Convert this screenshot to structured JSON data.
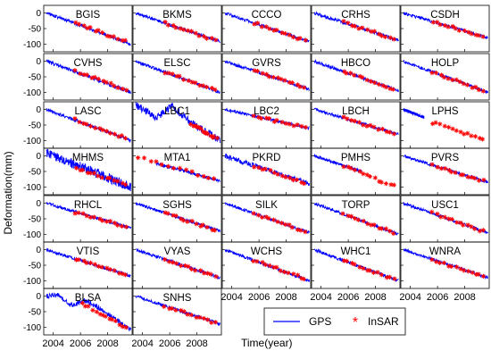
{
  "figure": {
    "ylabel": "Deformation(mm)",
    "xlabel": "Time(year)",
    "legend": {
      "placement": "bottom-right",
      "entries": [
        {
          "name": "GPS",
          "marker": "line",
          "color": "#0000ff"
        },
        {
          "name": "InSAR",
          "marker": "asterisk",
          "color": "#ff0000"
        }
      ]
    },
    "colors": {
      "gps": "#0000ff",
      "insar": "#ff0000",
      "axes": "#000000"
    }
  },
  "chart_data": {
    "type": "scatter",
    "layout": "small-multiples grid, 7 rows x 5 columns (32 panels)",
    "xlim": [
      2003.3,
      2009.8
    ],
    "ylim": [
      -125,
      25
    ],
    "x_ticks": [
      "2004",
      "2006",
      "2008"
    ],
    "y_ticks": [
      "0",
      "-50",
      "-100"
    ],
    "series_names": [
      "GPS",
      "InSAR"
    ],
    "grid": false,
    "stations": [
      {
        "name": "BGIS",
        "row": 0,
        "col": 0,
        "trend": [
          {
            "x": 2003.5,
            "y": 0
          },
          {
            "x": 2009.7,
            "y": -100
          }
        ],
        "insar": [
          {
            "x": 2005.5,
            "y": -30
          },
          {
            "x": 2009.5,
            "y": -95
          }
        ],
        "gps_noise": 5
      },
      {
        "name": "BKMS",
        "row": 0,
        "col": 1,
        "trend": [
          {
            "x": 2003.5,
            "y": 0
          },
          {
            "x": 2009.7,
            "y": -92
          }
        ],
        "insar": [
          {
            "x": 2005.5,
            "y": -30
          },
          {
            "x": 2009.5,
            "y": -90
          }
        ],
        "gps_noise": 5
      },
      {
        "name": "CCCO",
        "row": 0,
        "col": 2,
        "trend": [
          {
            "x": 2003.5,
            "y": 0
          },
          {
            "x": 2009.7,
            "y": -92
          }
        ],
        "insar": [
          {
            "x": 2005.5,
            "y": -30
          },
          {
            "x": 2009.5,
            "y": -90
          }
        ],
        "gps_noise": 5
      },
      {
        "name": "CRHS",
        "row": 0,
        "col": 3,
        "trend": [
          {
            "x": 2003.5,
            "y": 0
          },
          {
            "x": 2009.7,
            "y": -88
          }
        ],
        "insar": [
          {
            "x": 2005.5,
            "y": -28
          },
          {
            "x": 2009.5,
            "y": -85
          }
        ],
        "gps_noise": 5
      },
      {
        "name": "CSDH",
        "row": 0,
        "col": 4,
        "trend": [
          {
            "x": 2003.5,
            "y": 0
          },
          {
            "x": 2009.7,
            "y": -80
          }
        ],
        "insar": [
          {
            "x": 2005.5,
            "y": -25
          },
          {
            "x": 2009.5,
            "y": -78
          }
        ],
        "gps_noise": 5
      },
      {
        "name": "CVHS",
        "row": 1,
        "col": 0,
        "trend": [
          {
            "x": 2003.5,
            "y": 0
          },
          {
            "x": 2009.7,
            "y": -100
          }
        ],
        "insar": [
          {
            "x": 2005.5,
            "y": -30
          },
          {
            "x": 2009.5,
            "y": -95
          }
        ],
        "gps_noise": 6
      },
      {
        "name": "ELSC",
        "row": 1,
        "col": 1,
        "trend": [
          {
            "x": 2003.5,
            "y": 0
          },
          {
            "x": 2009.7,
            "y": -100
          }
        ],
        "insar": [
          {
            "x": 2005.5,
            "y": -32
          },
          {
            "x": 2009.5,
            "y": -95
          }
        ],
        "gps_noise": 5
      },
      {
        "name": "GVRS",
        "row": 1,
        "col": 2,
        "trend": [
          {
            "x": 2003.5,
            "y": 0
          },
          {
            "x": 2009.7,
            "y": -90
          }
        ],
        "insar": [
          {
            "x": 2005.5,
            "y": -28
          },
          {
            "x": 2009.5,
            "y": -88
          }
        ],
        "gps_noise": 5
      },
      {
        "name": "HBCO",
        "row": 1,
        "col": 3,
        "trend": [
          {
            "x": 2003.5,
            "y": 0
          },
          {
            "x": 2009.7,
            "y": -95
          }
        ],
        "insar": [
          {
            "x": 2005.5,
            "y": -30
          },
          {
            "x": 2009.5,
            "y": -92
          }
        ],
        "gps_noise": 5
      },
      {
        "name": "HOLP",
        "row": 1,
        "col": 4,
        "trend": [
          {
            "x": 2003.5,
            "y": 0
          },
          {
            "x": 2009.7,
            "y": -100
          }
        ],
        "insar": [
          {
            "x": 2005.5,
            "y": -32
          },
          {
            "x": 2009.5,
            "y": -98
          }
        ],
        "gps_noise": 5
      },
      {
        "name": "LASC",
        "row": 2,
        "col": 0,
        "trend": [
          {
            "x": 2003.5,
            "y": 0
          },
          {
            "x": 2009.7,
            "y": -100
          }
        ],
        "insar": [
          {
            "x": 2005.5,
            "y": -30
          },
          {
            "x": 2009.5,
            "y": -95
          }
        ],
        "gps_noise": 5
      },
      {
        "name": "LBC1",
        "row": 2,
        "col": 1,
        "trend": [
          {
            "x": 2003.5,
            "y": 15
          },
          {
            "x": 2005.0,
            "y": -25
          },
          {
            "x": 2006.2,
            "y": 10
          },
          {
            "x": 2007.5,
            "y": -40
          },
          {
            "x": 2009.7,
            "y": -100
          }
        ],
        "insar": [
          {
            "x": 2007.5,
            "y": -45
          },
          {
            "x": 2009.5,
            "y": -95
          }
        ],
        "gps_noise": 12
      },
      {
        "name": "LBC2",
        "row": 2,
        "col": 2,
        "trend": [
          {
            "x": 2003.5,
            "y": 0
          },
          {
            "x": 2009.7,
            "y": -60
          }
        ],
        "insar": [
          {
            "x": 2005.5,
            "y": -20
          },
          {
            "x": 2009.5,
            "y": -58
          }
        ],
        "gps_noise": 5
      },
      {
        "name": "LBCH",
        "row": 2,
        "col": 3,
        "trend": [
          {
            "x": 2003.5,
            "y": 0
          },
          {
            "x": 2009.7,
            "y": -80
          }
        ],
        "insar": [
          {
            "x": 2005.5,
            "y": -25
          },
          {
            "x": 2009.5,
            "y": -78
          }
        ],
        "gps_noise": 5
      },
      {
        "name": "LPHS",
        "row": 2,
        "col": 4,
        "trend": [
          {
            "x": 2003.5,
            "y": 0
          },
          {
            "x": 2005.0,
            "y": -25
          }
        ],
        "insar": [
          {
            "x": 2005.5,
            "y": -40
          },
          {
            "x": 2009.5,
            "y": -100
          }
        ],
        "gps_noise": 5
      },
      {
        "name": "MHMS",
        "row": 3,
        "col": 0,
        "trend": [
          {
            "x": 2003.5,
            "y": 10
          },
          {
            "x": 2009.7,
            "y": -100
          }
        ],
        "insar": [
          {
            "x": 2005.5,
            "y": -35
          },
          {
            "x": 2009.5,
            "y": -95
          }
        ],
        "gps_noise": 16
      },
      {
        "name": "MTA1",
        "row": 3,
        "col": 1,
        "trend": [
          {
            "x": 2005.0,
            "y": -25
          },
          {
            "x": 2009.7,
            "y": -80
          }
        ],
        "insar": [
          {
            "x": 2003.5,
            "y": 0
          },
          {
            "x": 2009.5,
            "y": -78
          }
        ],
        "gps_noise": 5
      },
      {
        "name": "PKRD",
        "row": 3,
        "col": 2,
        "trend": [
          {
            "x": 2003.5,
            "y": 0
          },
          {
            "x": 2009.7,
            "y": -90
          }
        ],
        "insar": [
          {
            "x": 2005.5,
            "y": -30
          },
          {
            "x": 2009.5,
            "y": -88
          }
        ],
        "gps_noise": 8
      },
      {
        "name": "PMHS",
        "row": 3,
        "col": 3,
        "trend": [
          {
            "x": 2003.5,
            "y": 0
          },
          {
            "x": 2007.0,
            "y": -50
          }
        ],
        "insar": [
          {
            "x": 2005.5,
            "y": -30
          },
          {
            "x": 2009.5,
            "y": -100
          }
        ],
        "gps_noise": 5
      },
      {
        "name": "PVRS",
        "row": 3,
        "col": 4,
        "trend": [
          {
            "x": 2003.5,
            "y": 0
          },
          {
            "x": 2009.7,
            "y": -85
          }
        ],
        "insar": [
          {
            "x": 2005.5,
            "y": -28
          },
          {
            "x": 2009.5,
            "y": -82
          }
        ],
        "gps_noise": 5
      },
      {
        "name": "RHCL",
        "row": 4,
        "col": 0,
        "trend": [
          {
            "x": 2003.5,
            "y": 0
          },
          {
            "x": 2009.7,
            "y": -80
          }
        ],
        "insar": [
          {
            "x": 2005.5,
            "y": -28
          },
          {
            "x": 2009.5,
            "y": -78
          }
        ],
        "gps_noise": 5
      },
      {
        "name": "SGHS",
        "row": 4,
        "col": 1,
        "trend": [
          {
            "x": 2003.5,
            "y": 0
          },
          {
            "x": 2009.7,
            "y": -90
          }
        ],
        "insar": [
          {
            "x": 2005.5,
            "y": -30
          },
          {
            "x": 2009.5,
            "y": -88
          }
        ],
        "gps_noise": 5
      },
      {
        "name": "SILK",
        "row": 4,
        "col": 2,
        "trend": [
          {
            "x": 2003.5,
            "y": 0
          },
          {
            "x": 2009.7,
            "y": -95
          }
        ],
        "insar": [
          {
            "x": 2005.5,
            "y": -30
          },
          {
            "x": 2009.5,
            "y": -92
          }
        ],
        "gps_noise": 5
      },
      {
        "name": "TORP",
        "row": 4,
        "col": 3,
        "trend": [
          {
            "x": 2003.5,
            "y": 0
          },
          {
            "x": 2009.7,
            "y": -100
          }
        ],
        "insar": [
          {
            "x": 2005.5,
            "y": -32
          },
          {
            "x": 2009.5,
            "y": -98
          }
        ],
        "gps_noise": 5
      },
      {
        "name": "USC1",
        "row": 4,
        "col": 4,
        "trend": [
          {
            "x": 2003.5,
            "y": 0
          },
          {
            "x": 2009.7,
            "y": -95
          }
        ],
        "insar": [
          {
            "x": 2005.5,
            "y": -30
          },
          {
            "x": 2009.5,
            "y": -92
          }
        ],
        "gps_noise": 5
      },
      {
        "name": "VTIS",
        "row": 5,
        "col": 0,
        "trend": [
          {
            "x": 2003.5,
            "y": 0
          },
          {
            "x": 2009.7,
            "y": -85
          }
        ],
        "insar": [
          {
            "x": 2005.5,
            "y": -28
          },
          {
            "x": 2009.5,
            "y": -82
          }
        ],
        "gps_noise": 5
      },
      {
        "name": "VYAS",
        "row": 5,
        "col": 1,
        "trend": [
          {
            "x": 2003.5,
            "y": 0
          },
          {
            "x": 2009.7,
            "y": -90
          }
        ],
        "insar": [
          {
            "x": 2005.5,
            "y": -30
          },
          {
            "x": 2009.5,
            "y": -88
          }
        ],
        "gps_noise": 5
      },
      {
        "name": "WCHS",
        "row": 5,
        "col": 2,
        "trend": [
          {
            "x": 2003.5,
            "y": 0
          },
          {
            "x": 2009.7,
            "y": -100
          }
        ],
        "insar": [
          {
            "x": 2005.5,
            "y": -32
          },
          {
            "x": 2009.5,
            "y": -95
          }
        ],
        "gps_noise": 5
      },
      {
        "name": "WHC1",
        "row": 5,
        "col": 3,
        "trend": [
          {
            "x": 2003.5,
            "y": 0
          },
          {
            "x": 2009.7,
            "y": -100
          }
        ],
        "insar": [
          {
            "x": 2005.5,
            "y": -32
          },
          {
            "x": 2009.5,
            "y": -98
          }
        ],
        "gps_noise": 5
      },
      {
        "name": "WNRA",
        "row": 5,
        "col": 4,
        "trend": [
          {
            "x": 2003.5,
            "y": 0
          },
          {
            "x": 2009.7,
            "y": -90
          }
        ],
        "insar": [
          {
            "x": 2005.5,
            "y": -30
          },
          {
            "x": 2009.5,
            "y": -88
          }
        ],
        "gps_noise": 5
      },
      {
        "name": "BLSA",
        "row": 6,
        "col": 0,
        "trend": [
          {
            "x": 2003.5,
            "y": 0
          },
          {
            "x": 2004.3,
            "y": 5
          },
          {
            "x": 2005.3,
            "y": -30
          },
          {
            "x": 2006.3,
            "y": -15
          },
          {
            "x": 2007.3,
            "y": -35
          },
          {
            "x": 2009.7,
            "y": -110
          }
        ],
        "insar": [
          {
            "x": 2006.0,
            "y": -20
          },
          {
            "x": 2009.5,
            "y": -105
          }
        ],
        "gps_noise": 8
      },
      {
        "name": "SNHS",
        "row": 6,
        "col": 1,
        "trend": [
          {
            "x": 2003.5,
            "y": 0
          },
          {
            "x": 2009.7,
            "y": -90
          }
        ],
        "insar": [
          {
            "x": 2005.5,
            "y": -30
          },
          {
            "x": 2009.5,
            "y": -88
          }
        ],
        "gps_noise": 5
      }
    ]
  }
}
